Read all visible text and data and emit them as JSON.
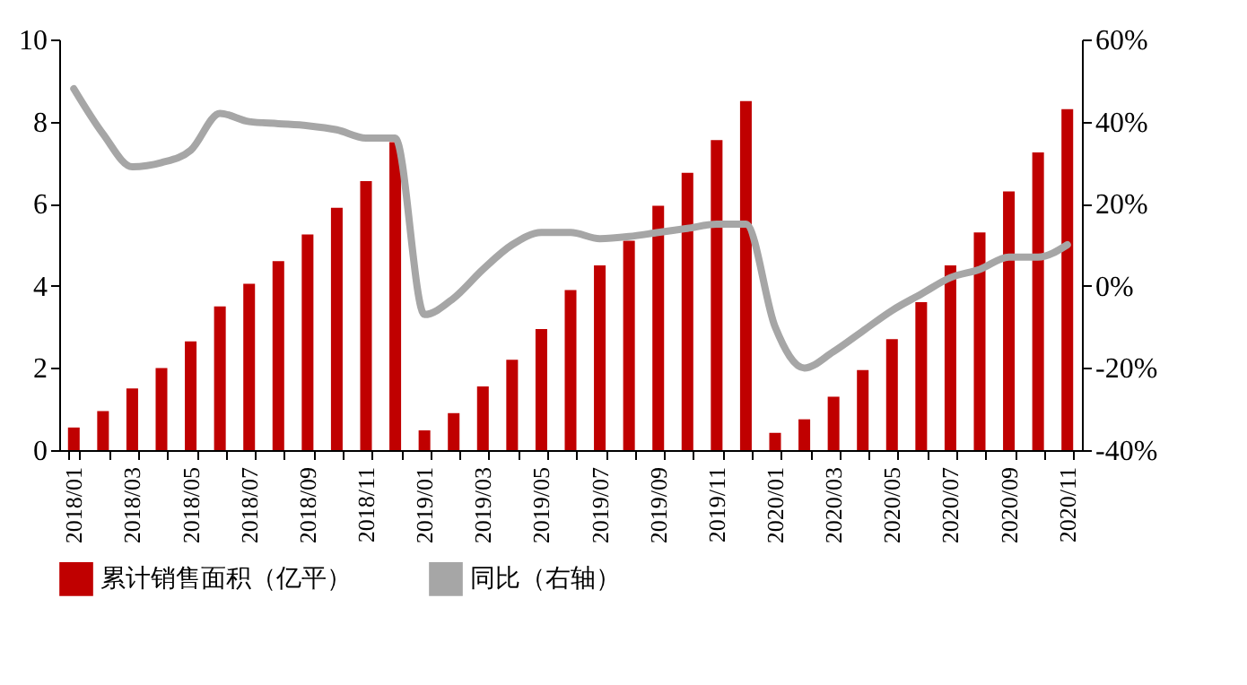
{
  "chart_data": {
    "type": "bar",
    "categories": [
      "2018/01",
      null,
      "2018/03",
      null,
      "2018/05",
      null,
      "2018/07",
      null,
      "2018/09",
      null,
      "2018/11",
      null,
      "2019/01",
      null,
      "2019/03",
      null,
      "2019/05",
      null,
      "2019/07",
      null,
      "2019/09",
      null,
      "2019/11",
      null,
      "2020/01",
      null,
      "2020/03",
      null,
      "2020/05",
      null,
      "2020/07",
      null,
      "2020/09",
      null,
      "2020/11"
    ],
    "series": [
      {
        "name": "累计销售面积（亿平）",
        "color": "#c00000",
        "values": [
          0.55,
          0.95,
          1.5,
          2.0,
          2.65,
          3.5,
          4.05,
          4.6,
          5.25,
          5.9,
          6.55,
          7.5,
          0.48,
          0.9,
          1.55,
          2.2,
          2.95,
          3.9,
          4.5,
          5.1,
          5.95,
          6.75,
          7.55,
          8.5,
          0.42,
          0.75,
          1.3,
          1.95,
          2.7,
          3.6,
          4.5,
          5.3,
          6.3,
          7.25,
          8.3
        ]
      },
      {
        "name": "同比（右轴）",
        "type": "line",
        "axis": "y2",
        "color": "#a6a6a6",
        "values": [
          48,
          37,
          29,
          30,
          33,
          42,
          40,
          39.5,
          39,
          38,
          36,
          36,
          -7,
          -3,
          4,
          10,
          13,
          13,
          11.5,
          12,
          13,
          14,
          15,
          15,
          -10,
          -20,
          -16,
          -11,
          -6,
          -2,
          2,
          4,
          7,
          7,
          10
        ]
      }
    ],
    "ylim": [
      0,
      10
    ],
    "yticks": [
      0,
      2,
      4,
      6,
      8,
      10
    ],
    "y2lim": [
      -40,
      60
    ],
    "y2ticks": [
      {
        "value": -40,
        "label": "-40%"
      },
      {
        "value": -20,
        "label": "-20%"
      },
      {
        "value": 0,
        "label": "0%"
      },
      {
        "value": 20,
        "label": "20%"
      },
      {
        "value": 40,
        "label": "40%"
      },
      {
        "value": 60,
        "label": "60%"
      }
    ],
    "legend": "bottom",
    "grid": false,
    "marker": "none",
    "line_style": "solid"
  }
}
